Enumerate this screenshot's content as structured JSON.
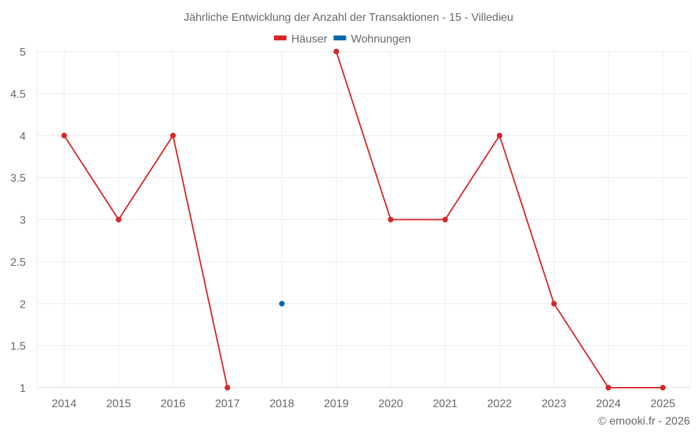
{
  "chart_data": {
    "type": "line",
    "title": "Jährliche Entwicklung der Anzahl der Transaktionen - 15 - Villedieu",
    "categories": [
      "2014",
      "2015",
      "2016",
      "2017",
      "2018",
      "2019",
      "2020",
      "2021",
      "2022",
      "2023",
      "2024",
      "2025"
    ],
    "series": [
      {
        "name": "Häuser",
        "color": "#d62728",
        "values": [
          4,
          3,
          4,
          1,
          null,
          5,
          3,
          3,
          4,
          2,
          1,
          1
        ]
      },
      {
        "name": "Wohnungen",
        "color": "#0868ac",
        "values": [
          null,
          null,
          null,
          null,
          2,
          null,
          null,
          null,
          null,
          null,
          null,
          null
        ]
      }
    ],
    "xlabel": "",
    "ylabel": "",
    "ylim": [
      1,
      5
    ],
    "yticks": [
      "1",
      "1.5",
      "2",
      "2.5",
      "3",
      "3.5",
      "4",
      "4.5",
      "5"
    ],
    "grid": true,
    "legend_position": "top"
  },
  "credit": "© emooki.fr - 2026"
}
